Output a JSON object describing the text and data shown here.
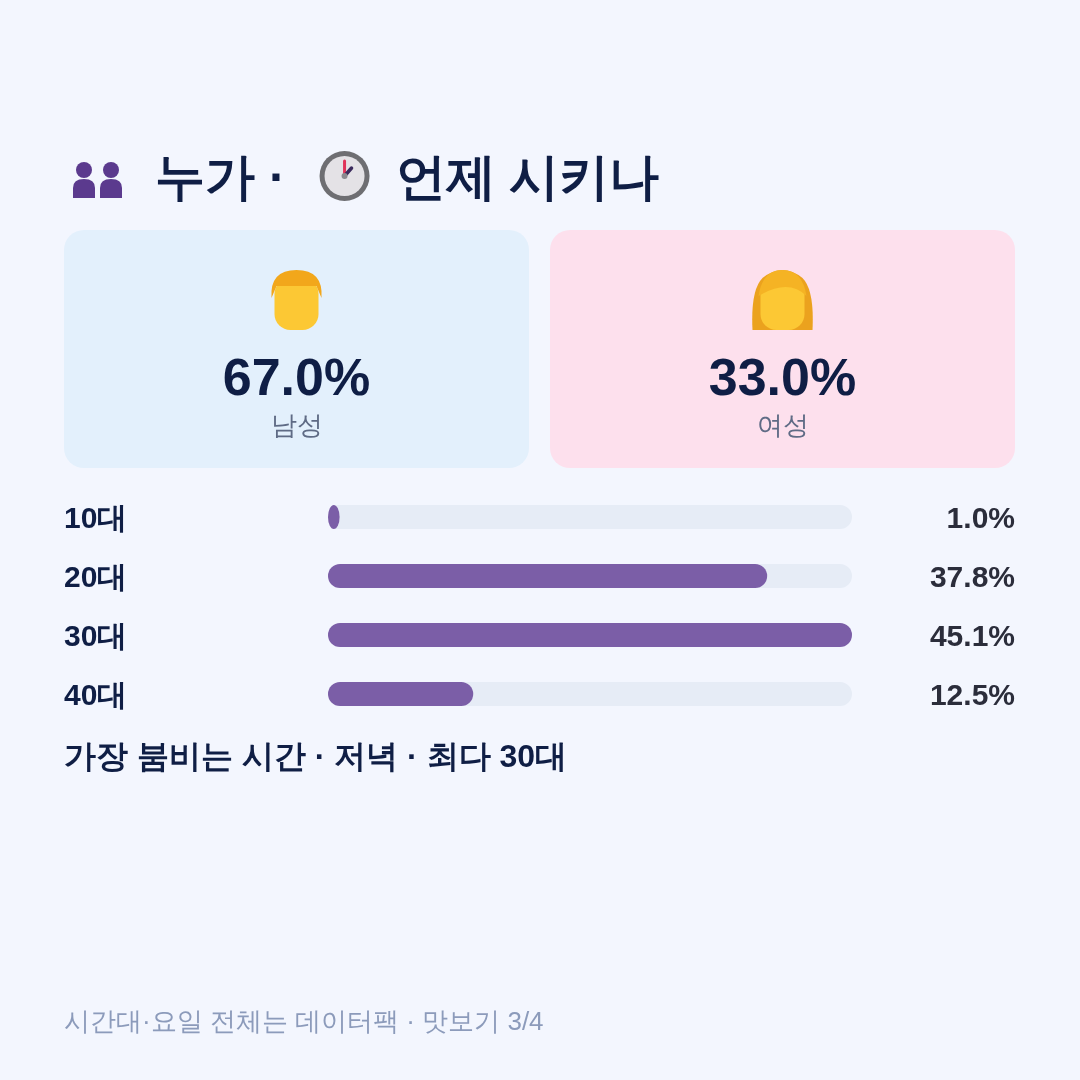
{
  "chart_data": [
    {
      "type": "other",
      "title": "누가 · 언제 시키나",
      "categories": [
        "남성",
        "여성"
      ],
      "value_labels": [
        "67.0%",
        "33.0%"
      ],
      "colors": [
        "#e3f0fc",
        "#fde0ed"
      ]
    },
    {
      "type": "bar",
      "orientation": "horizontal",
      "categories": [
        "10대",
        "20대",
        "30대",
        "40대"
      ],
      "values": [
        1.0,
        37.8,
        45.1,
        12.5
      ],
      "value_labels": [
        "1.0%",
        "37.8%",
        "45.1%",
        "12.5%"
      ],
      "color": "#7b5ea7",
      "xlim": [
        0,
        45.1
      ],
      "tick_labels": "y",
      "annotations": [
        "가장 붐비는 시간 · 저녁 · 최다 30대",
        "시간대·요일 전체는 데이터팩 · 맛보기 3/4"
      ]
    }
  ]
}
